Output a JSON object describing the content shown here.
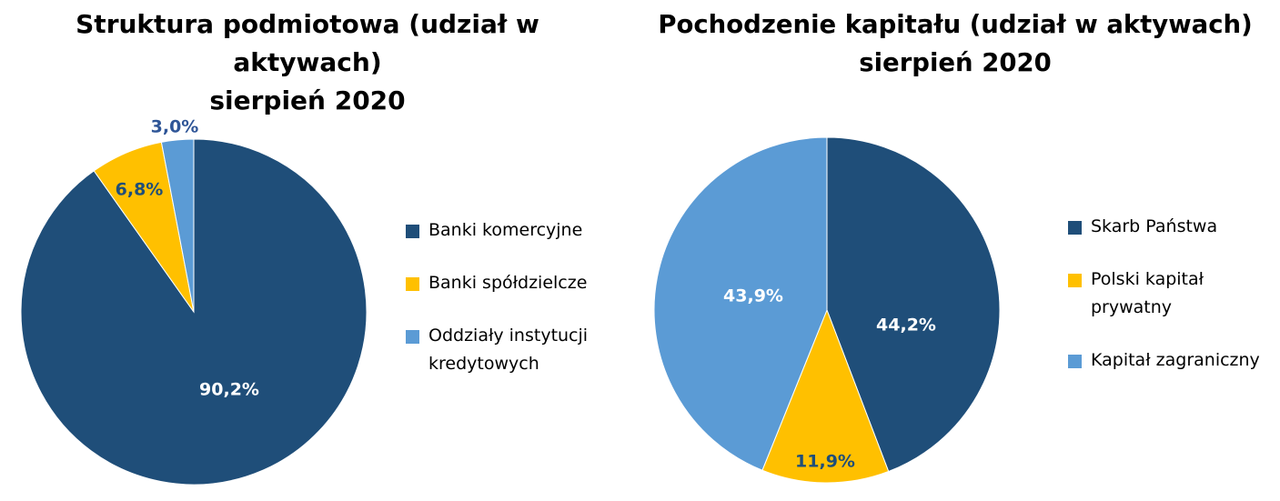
{
  "chart_data": [
    {
      "type": "pie",
      "title_lines": [
        "Struktura podmiotowa (udział w aktywach)",
        "sierpień 2020"
      ],
      "slices": [
        {
          "label": "Banki komercyjne",
          "value": 90.2,
          "value_label": "90,2%",
          "color": "#1f4e79",
          "label_color": "#ffffff"
        },
        {
          "label": "Banki spółdzielcze",
          "value": 6.8,
          "value_label": "6,8%",
          "color": "#ffc000",
          "label_color": "#1f4e79"
        },
        {
          "label": "Oddziały instytucji kredytowych",
          "value": 3.0,
          "value_label": "3,0%",
          "color": "#5b9bd5",
          "label_color": "#2e5597"
        }
      ],
      "legend_position": "right"
    },
    {
      "type": "pie",
      "title_lines": [
        "Pochodzenie kapitału (udział w aktywach)",
        "sierpień 2020"
      ],
      "slices": [
        {
          "label": "Skarb Państwa",
          "value": 44.2,
          "value_label": "44,2%",
          "color": "#1f4e79",
          "label_color": "#ffffff"
        },
        {
          "label": "Polski kapitał prywatny",
          "value": 11.9,
          "value_label": "11,9%",
          "color": "#ffc000",
          "label_color": "#1f4e79"
        },
        {
          "label": "Kapitał zagraniczny",
          "value": 43.9,
          "value_label": "43,9%",
          "color": "#5b9bd5",
          "label_color": "#ffffff"
        }
      ],
      "legend_position": "right"
    }
  ]
}
